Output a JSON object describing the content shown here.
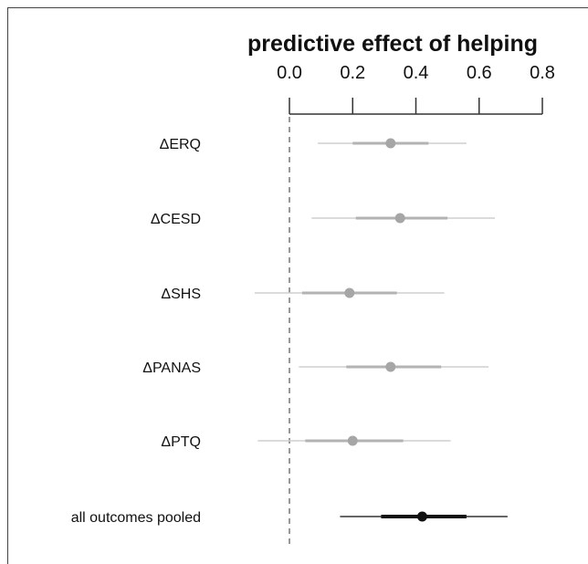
{
  "chart_data": {
    "type": "forest",
    "title": "predictive effect of helping",
    "xlim": [
      0.0,
      0.8
    ],
    "ticks": [
      "0.0",
      "0.2",
      "0.4",
      "0.6",
      "0.8"
    ],
    "reference_line": 0.0,
    "rows": [
      {
        "label": "ΔERQ",
        "estimate": 0.32,
        "inner": [
          0.2,
          0.44
        ],
        "outer": [
          0.09,
          0.56
        ],
        "color": "#a6a6a6"
      },
      {
        "label": "ΔCESD",
        "estimate": 0.35,
        "inner": [
          0.21,
          0.5
        ],
        "outer": [
          0.07,
          0.65
        ],
        "color": "#a6a6a6"
      },
      {
        "label": "ΔSHS",
        "estimate": 0.19,
        "inner": [
          0.04,
          0.34
        ],
        "outer": [
          -0.11,
          0.49
        ],
        "color": "#a6a6a6"
      },
      {
        "label": "ΔPANAS",
        "estimate": 0.32,
        "inner": [
          0.18,
          0.48
        ],
        "outer": [
          0.03,
          0.63
        ],
        "color": "#a6a6a6"
      },
      {
        "label": "ΔPTQ",
        "estimate": 0.2,
        "inner": [
          0.05,
          0.36
        ],
        "outer": [
          -0.1,
          0.51
        ],
        "color": "#a6a6a6"
      },
      {
        "label": "all outcomes pooled",
        "estimate": 0.42,
        "inner": [
          0.29,
          0.56
        ],
        "outer": [
          0.16,
          0.69
        ],
        "color": "#111111"
      }
    ]
  }
}
